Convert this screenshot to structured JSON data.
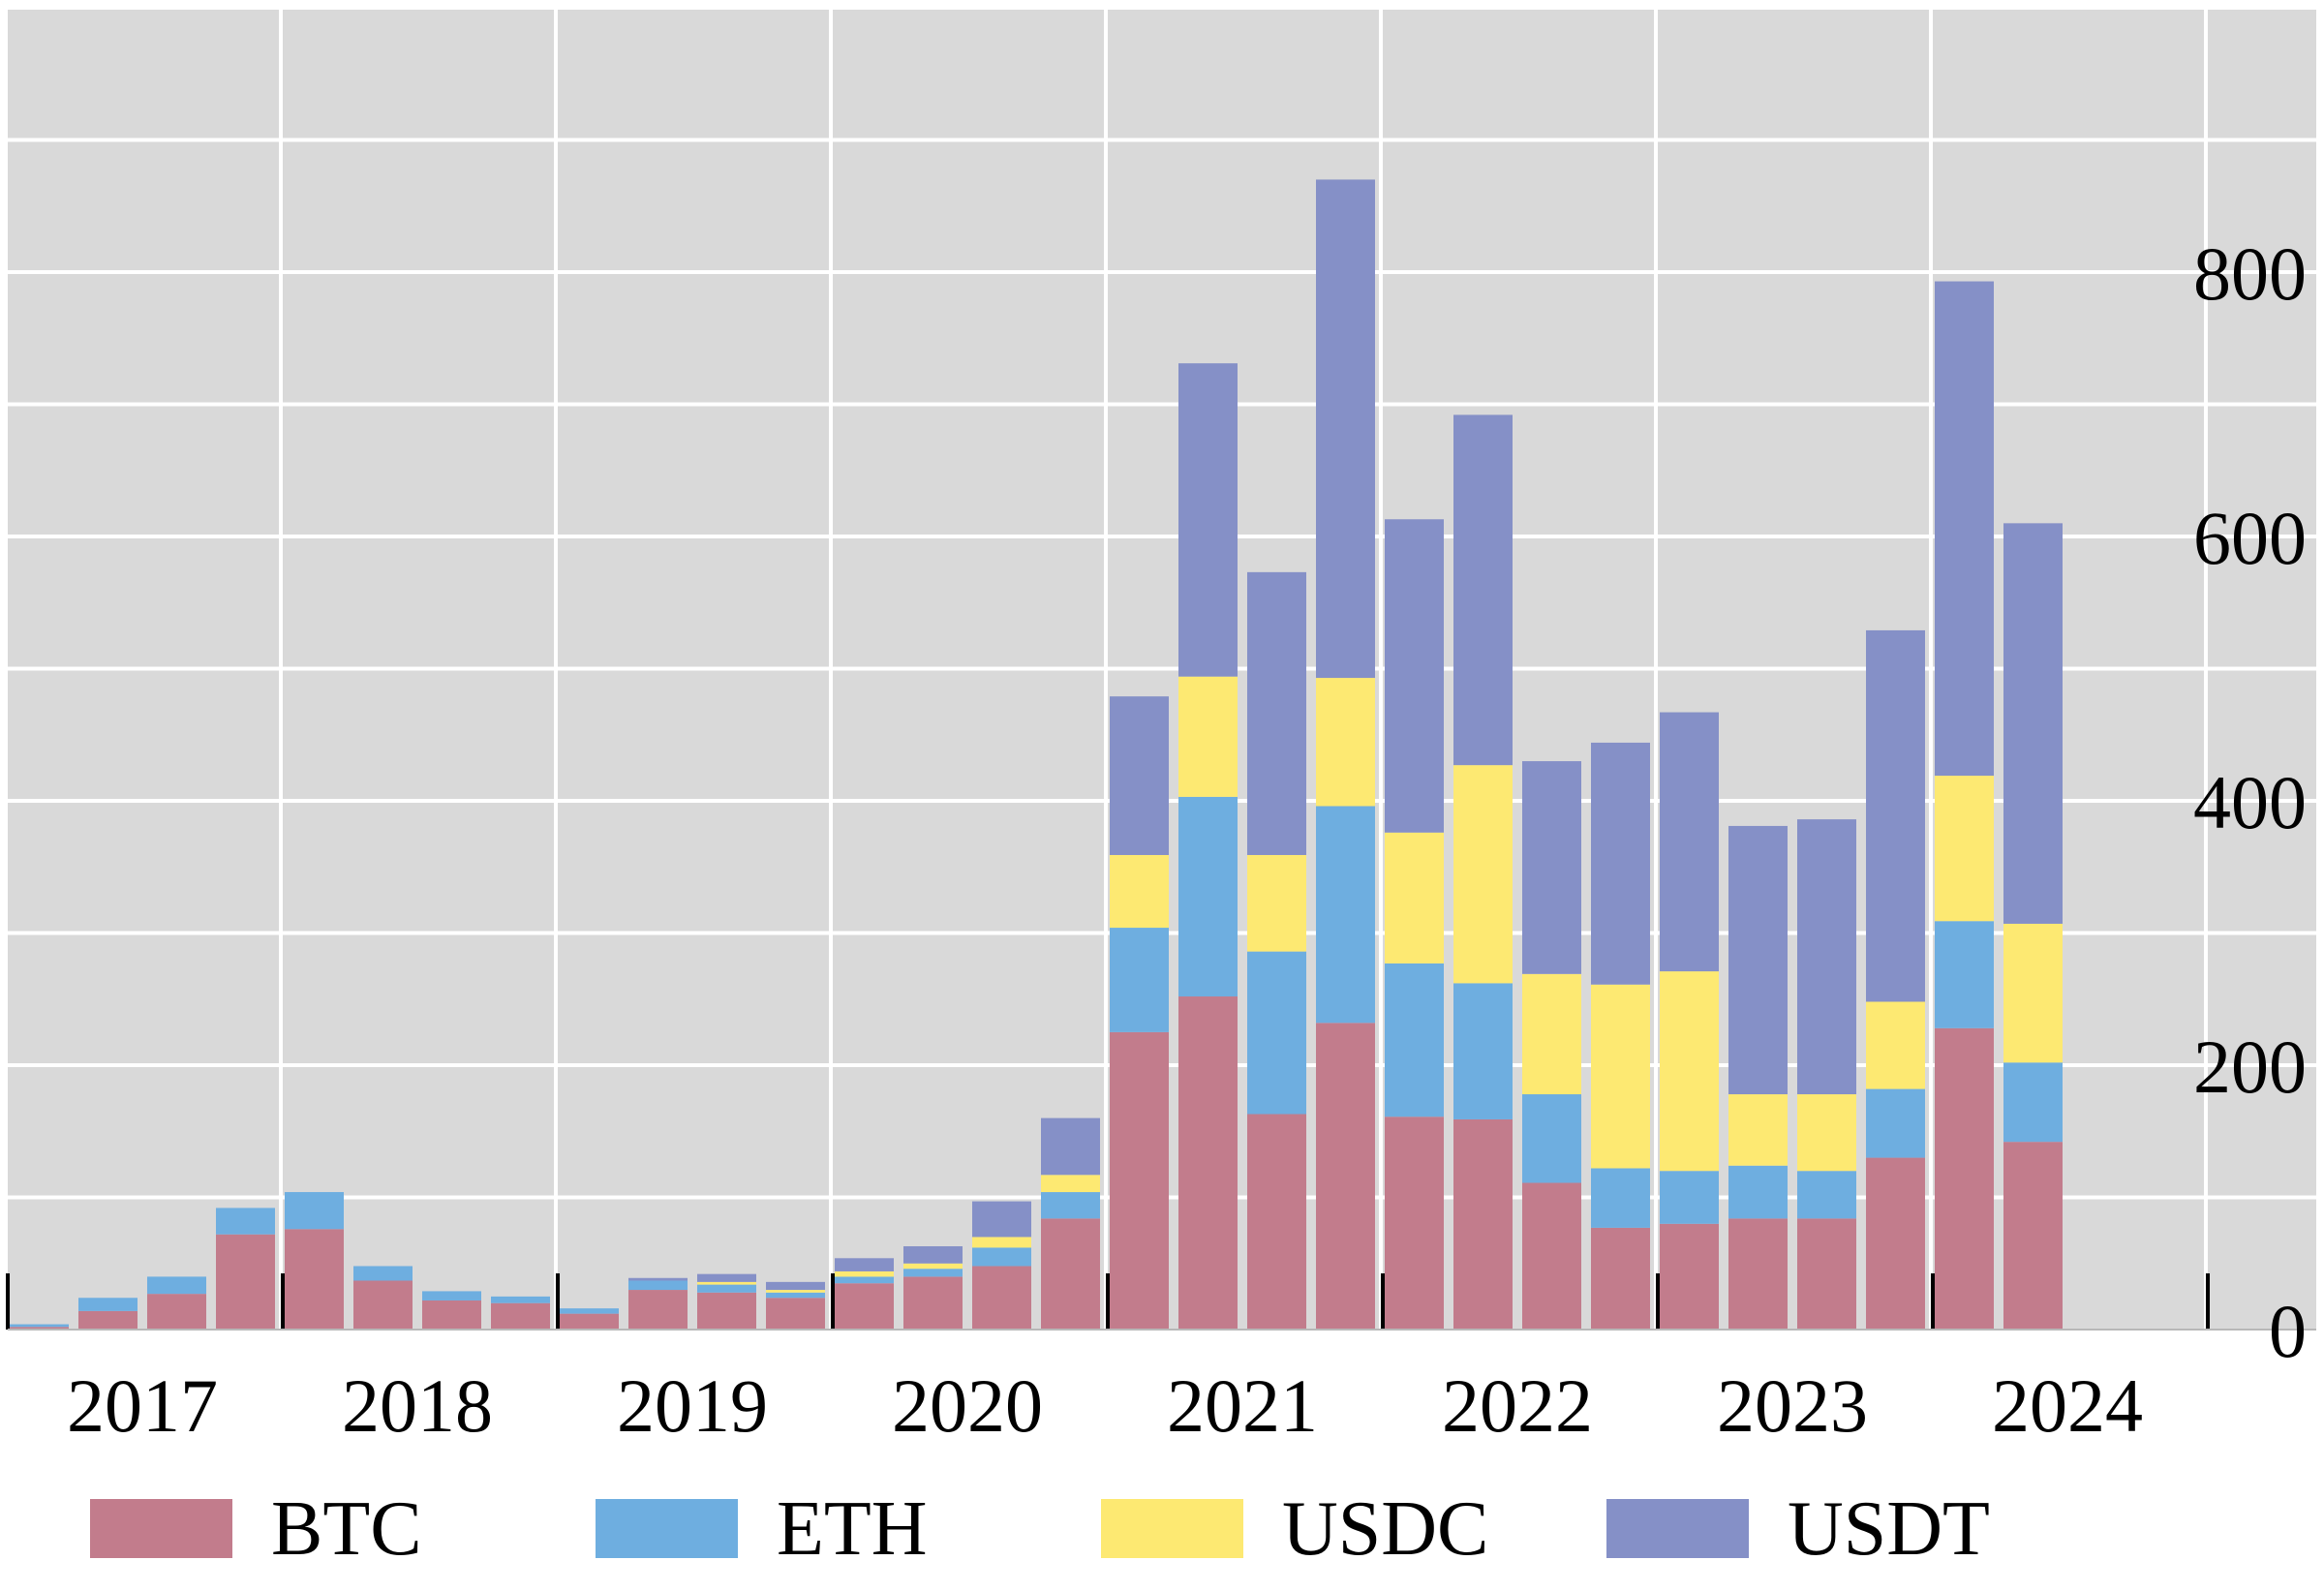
{
  "chart_data": {
    "type": "bar",
    "stacked": true,
    "title": "",
    "xlabel": "",
    "ylabel": "",
    "ylim": [
      0,
      1000
    ],
    "y_ticks": [
      0,
      200,
      400,
      600,
      800
    ],
    "y_axis_side": "right",
    "grid": true,
    "legend_position": "bottom",
    "year_labels": [
      "2017",
      "2018",
      "2019",
      "2020",
      "2021",
      "2022",
      "2023",
      "2024"
    ],
    "categories": [
      "2017 Q1",
      "2017 Q2",
      "2017 Q3",
      "2017 Q4",
      "2018 Q1",
      "2018 Q2",
      "2018 Q3",
      "2018 Q4",
      "2019 Q1",
      "2019 Q2",
      "2019 Q3",
      "2019 Q4",
      "2020 Q1",
      "2020 Q2",
      "2020 Q3",
      "2020 Q4",
      "2021 Q1",
      "2021 Q2",
      "2021 Q3",
      "2021 Q4",
      "2022 Q1",
      "2022 Q2",
      "2022 Q3",
      "2022 Q4",
      "2023 Q1",
      "2023 Q2",
      "2023 Q3",
      "2023 Q4",
      "2024 Q1",
      "2024 Q2"
    ],
    "series": [
      {
        "name": "BTC",
        "color": "#c27c8c",
        "values": [
          2,
          14,
          27,
          72,
          76,
          37,
          22,
          20,
          12,
          30,
          28,
          24,
          35,
          40,
          48,
          84,
          225,
          252,
          163,
          232,
          161,
          159,
          111,
          77,
          80,
          84,
          84,
          130,
          228,
          142
        ]
      },
      {
        "name": "ETH",
        "color": "#6eaee0",
        "values": [
          2,
          10,
          13,
          20,
          28,
          11,
          7,
          5,
          4,
          7,
          6,
          4,
          5,
          6,
          14,
          20,
          79,
          151,
          123,
          164,
          116,
          103,
          67,
          45,
          40,
          40,
          36,
          52,
          81,
          60
        ]
      },
      {
        "name": "USDC",
        "color": "#fde972",
        "values": [
          0,
          0,
          0,
          0,
          0,
          0,
          0,
          0,
          0,
          0,
          2,
          2,
          4,
          4,
          8,
          13,
          55,
          91,
          73,
          97,
          99,
          165,
          91,
          139,
          151,
          54,
          58,
          66,
          110,
          105
        ]
      },
      {
        "name": "USDT",
        "color": "#8590c7",
        "values": [
          0,
          0,
          0,
          0,
          0,
          0,
          0,
          0,
          0,
          2,
          6,
          6,
          10,
          13,
          27,
          43,
          120,
          237,
          214,
          377,
          237,
          265,
          161,
          183,
          196,
          203,
          208,
          281,
          374,
          303
        ]
      }
    ]
  }
}
